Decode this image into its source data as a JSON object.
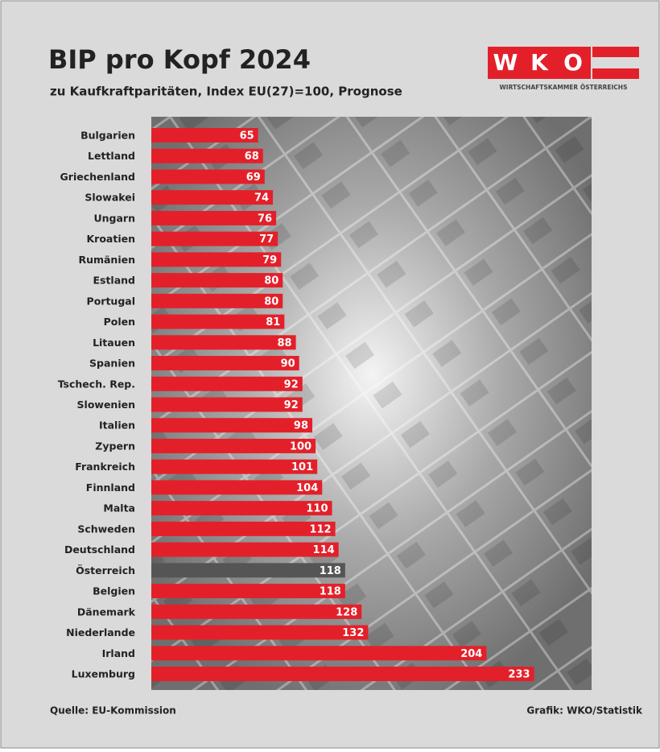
{
  "chart_data": {
    "type": "bar",
    "orientation": "horizontal",
    "title": "BIP pro Kopf 2024",
    "subtitle": "zu Kaufkraftparitäten, Index EU(27)=100, Prognose",
    "logo": {
      "letters": [
        "W",
        "K",
        "O"
      ],
      "caption": "WIRTSCHAFTSKAMMER ÖSTERREICHS"
    },
    "categories": [
      "Bulgarien",
      "Lettland",
      "Griechenland",
      "Slowakei",
      "Ungarn",
      "Kroatien",
      "Rumänien",
      "Estland",
      "Portugal",
      "Polen",
      "Litauen",
      "Spanien",
      "Tschech. Rep.",
      "Slowenien",
      "Italien",
      "Zypern",
      "Frankreich",
      "Finnland",
      "Malta",
      "Schweden",
      "Deutschland",
      "Österreich",
      "Belgien",
      "Dänemark",
      "Niederlande",
      "Irland",
      "Luxemburg"
    ],
    "values": [
      65,
      68,
      69,
      74,
      76,
      77,
      79,
      80,
      80,
      81,
      88,
      90,
      92,
      92,
      98,
      100,
      101,
      104,
      110,
      112,
      114,
      118,
      118,
      128,
      132,
      204,
      233
    ],
    "color": "#e3202a",
    "highlight": {
      "category": "Österreich",
      "color": "#555555"
    },
    "xlim": [
      0,
      268
    ],
    "source": "Quelle: EU-Kommission",
    "credit": "Grafik: WKO/Statistik"
  }
}
